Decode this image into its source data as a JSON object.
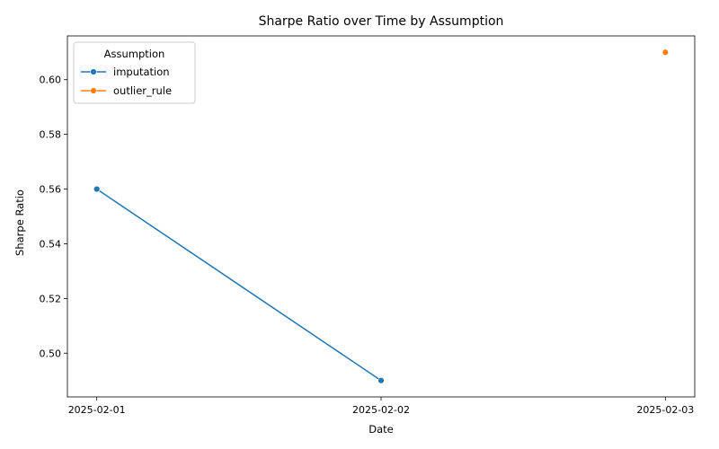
{
  "chart_data": {
    "type": "line",
    "title": "Sharpe Ratio over Time by Assumption",
    "xlabel": "Date",
    "ylabel": "Sharpe Ratio",
    "categories": [
      "2025-02-01",
      "2025-02-02",
      "2025-02-03"
    ],
    "ylim": [
      0.484,
      0.616
    ],
    "yticks": [
      0.5,
      0.52,
      0.54,
      0.56,
      0.58,
      0.6
    ],
    "ytick_labels": [
      "0.50",
      "0.52",
      "0.54",
      "0.56",
      "0.58",
      "0.60"
    ],
    "grid": false,
    "legend": {
      "title": "Assumption",
      "placement": "top-left"
    },
    "series": [
      {
        "name": "imputation",
        "color": "#1f77b4",
        "points": [
          {
            "x": "2025-02-01",
            "y": 0.56
          },
          {
            "x": "2025-02-02",
            "y": 0.49
          }
        ]
      },
      {
        "name": "outlier_rule",
        "color": "#ff7f0e",
        "points": [
          {
            "x": "2025-02-03",
            "y": 0.61
          }
        ]
      }
    ]
  }
}
